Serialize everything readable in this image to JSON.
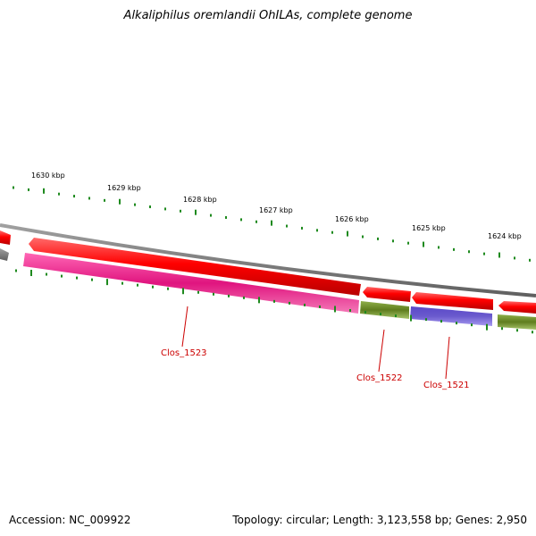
{
  "title": "Alkaliphilus oremlandii OhILAs, complete genome",
  "footer": {
    "accession": "Accession: NC_009922",
    "summary": "Topology: circular; Length: 3,123,558 bp; Genes: 2,950"
  },
  "scale_labels": [
    "1630 kbp",
    "1629 kbp",
    "1628 kbp",
    "1627 kbp",
    "1626 kbp",
    "1625 kbp",
    "1624 kbp"
  ],
  "genes": [
    {
      "name": "Clos_1523",
      "color": "#e0157f"
    },
    {
      "name": "Clos_1522",
      "color": "#6b8e23"
    },
    {
      "name": "Clos_1521",
      "color": "#6a5acd"
    }
  ],
  "colors": {
    "backbone": "#808080",
    "cds": "#ff0000",
    "ticks": "#1e8a1e",
    "label": "#cc0000"
  }
}
